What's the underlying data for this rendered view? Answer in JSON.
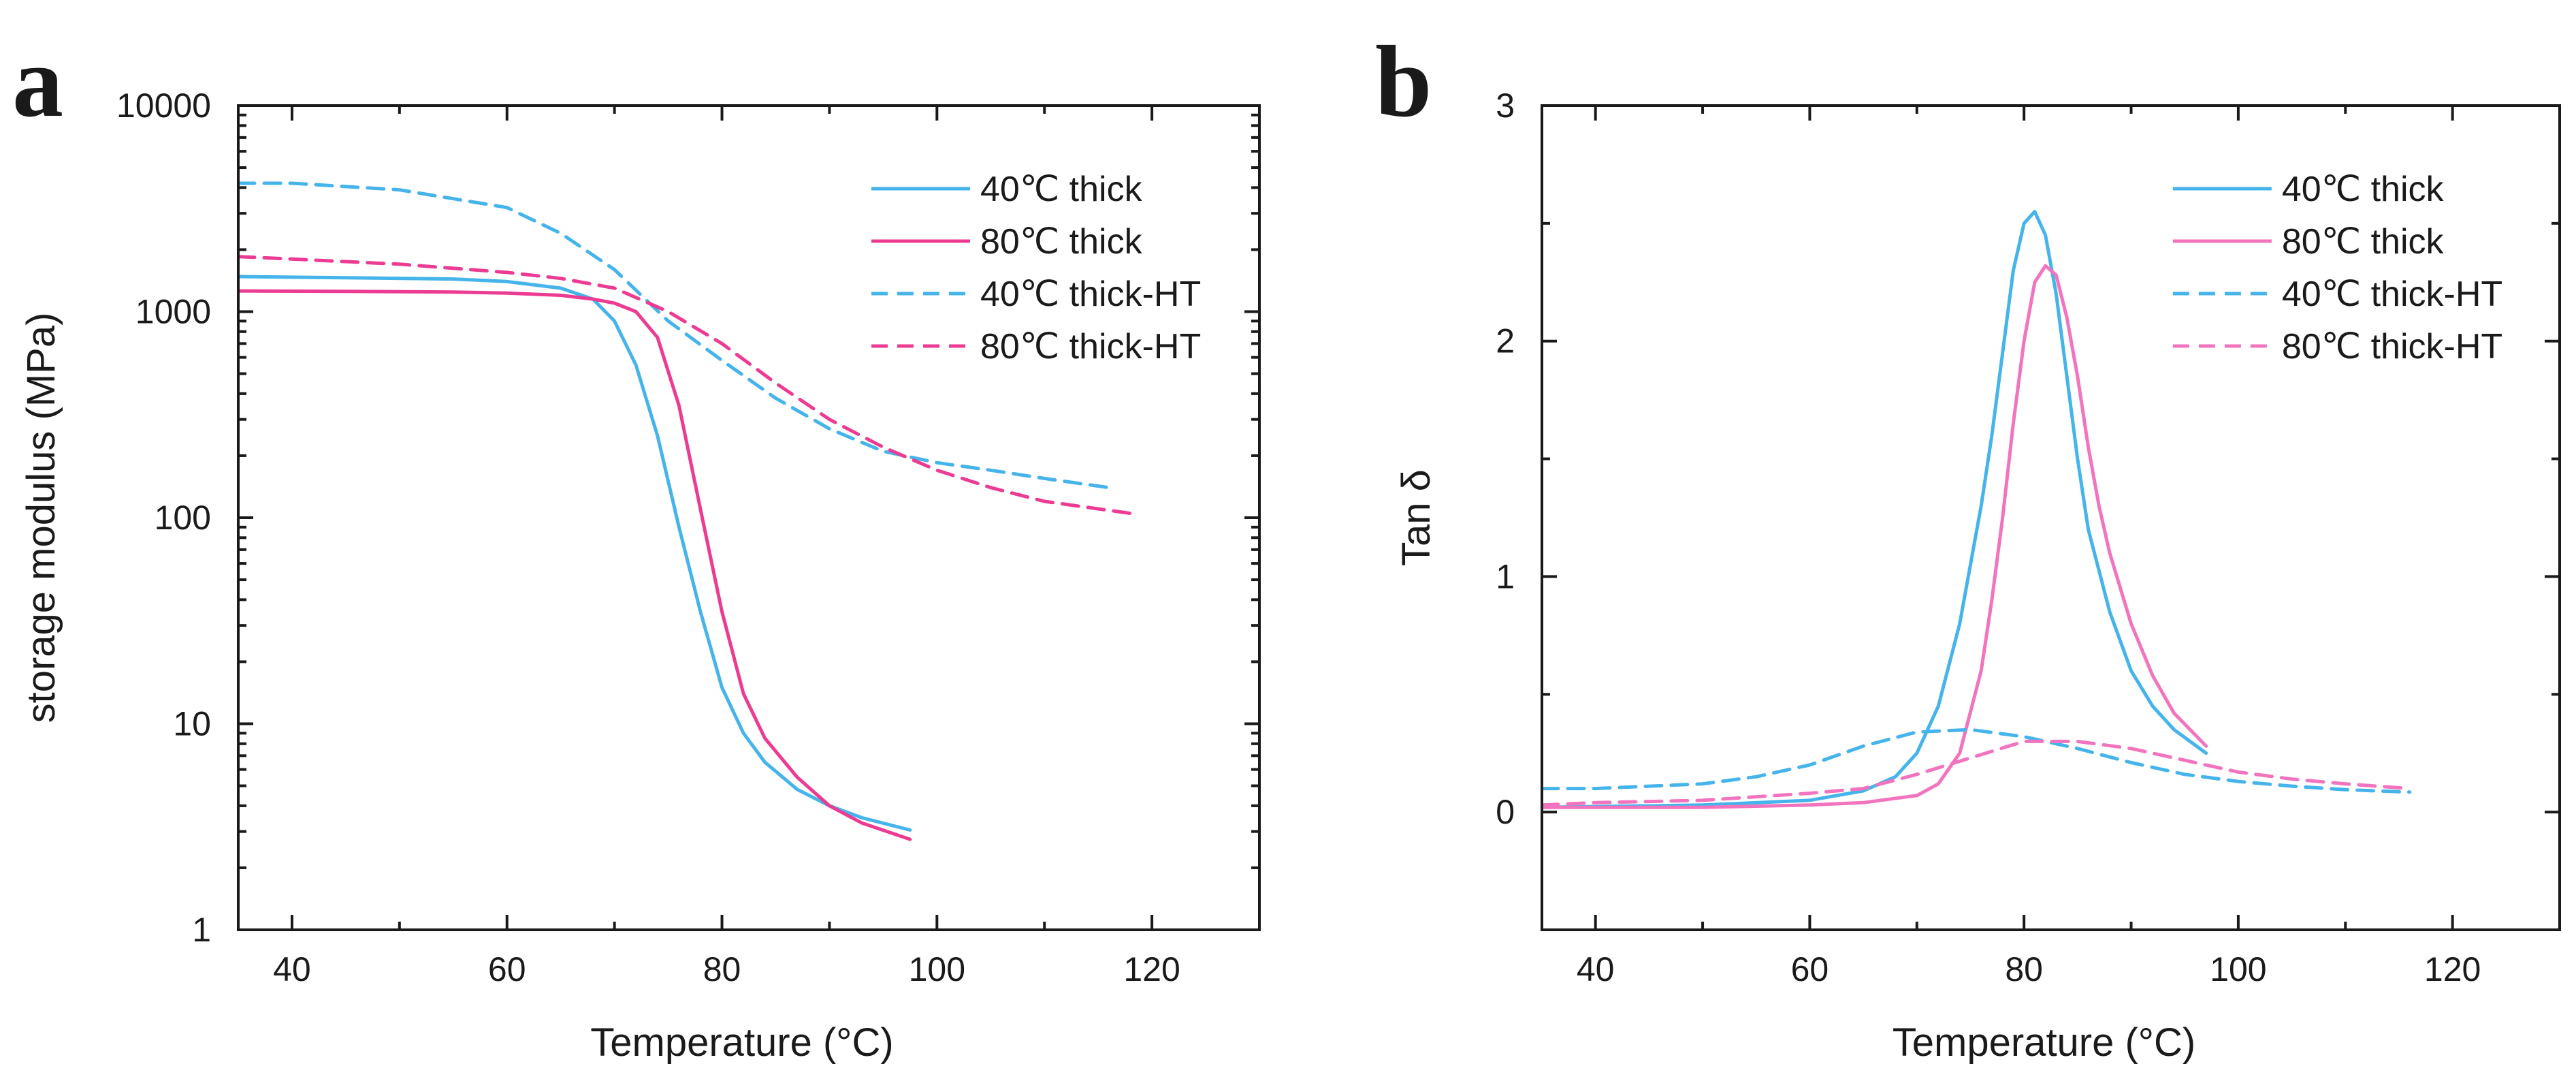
{
  "colors": {
    "cyan": "#45b4ea",
    "magenta": "#ec3b92",
    "pink": "#f274be",
    "axis": "#1a1a1a"
  },
  "chart_data": [
    {
      "panel_label": "a",
      "type": "line",
      "xlabel": "Temperature (°C)",
      "ylabel": "storage modulus (MPa)",
      "xlim": [
        35,
        130
      ],
      "ylim": [
        1,
        10000
      ],
      "yscale": "log",
      "x_ticks": [
        "40",
        "60",
        "80",
        "100",
        "120"
      ],
      "y_ticks": [
        "1",
        "10",
        "100",
        "1000",
        "10000"
      ],
      "legend_position": "top-right",
      "series": [
        {
          "name": "40℃ thick",
          "color": "#45b4ea",
          "dash": false,
          "x": [
            35,
            45,
            55,
            60,
            65,
            68,
            70,
            72,
            74,
            76,
            78,
            80,
            82,
            84,
            87,
            90,
            93,
            97.5
          ],
          "y": [
            1480,
            1460,
            1440,
            1400,
            1300,
            1150,
            900,
            550,
            250,
            90,
            35,
            15,
            9,
            6.5,
            4.8,
            4,
            3.5,
            3.05
          ]
        },
        {
          "name": "80℃ thick",
          "color": "#ec3b92",
          "dash": false,
          "x": [
            35,
            45,
            55,
            60,
            65,
            68,
            70,
            72,
            74,
            76,
            78,
            80,
            82,
            84,
            87,
            90,
            93,
            97.5
          ],
          "y": [
            1260,
            1255,
            1245,
            1230,
            1200,
            1150,
            1100,
            1000,
            750,
            350,
            110,
            35,
            14,
            8.5,
            5.5,
            4,
            3.3,
            2.75
          ]
        },
        {
          "name": "40℃ thick-HT",
          "color": "#45b4ea",
          "dash": true,
          "x": [
            35,
            40,
            50,
            60,
            65,
            70,
            75,
            80,
            85,
            90,
            95,
            100,
            105,
            110,
            116
          ],
          "y": [
            4200,
            4200,
            3900,
            3200,
            2400,
            1600,
            900,
            580,
            380,
            270,
            210,
            185,
            170,
            155,
            140
          ]
        },
        {
          "name": "80℃ thick-HT",
          "color": "#ec3b92",
          "dash": true,
          "x": [
            35,
            40,
            50,
            60,
            65,
            70,
            75,
            80,
            85,
            90,
            95,
            100,
            105,
            110,
            118
          ],
          "y": [
            1850,
            1800,
            1700,
            1550,
            1450,
            1300,
            1000,
            700,
            450,
            300,
            220,
            170,
            140,
            120,
            105
          ]
        }
      ]
    },
    {
      "panel_label": "b",
      "type": "line",
      "xlabel": "Temperature (°C)",
      "ylabel": "Tan δ",
      "xlim": [
        35,
        130
      ],
      "ylim": [
        -0.5,
        3
      ],
      "yscale": "linear",
      "x_ticks": [
        "40",
        "60",
        "80",
        "100",
        "120"
      ],
      "y_ticks": [
        "0",
        "1",
        "2",
        "3"
      ],
      "legend_position": "top-right",
      "series": [
        {
          "name": "40℃ thick",
          "color": "#45b4ea",
          "dash": false,
          "x": [
            35,
            50,
            60,
            65,
            68,
            70,
            72,
            74,
            76,
            77,
            78,
            79,
            80,
            81,
            82,
            83,
            84,
            85,
            86,
            88,
            90,
            92,
            94,
            97
          ],
          "y": [
            0.02,
            0.03,
            0.05,
            0.09,
            0.15,
            0.25,
            0.45,
            0.8,
            1.3,
            1.6,
            1.95,
            2.3,
            2.5,
            2.55,
            2.45,
            2.2,
            1.85,
            1.5,
            1.2,
            0.85,
            0.6,
            0.45,
            0.35,
            0.25
          ]
        },
        {
          "name": "80℃ thick",
          "color": "#f274be",
          "dash": false,
          "x": [
            35,
            50,
            60,
            65,
            70,
            72,
            74,
            76,
            77,
            78,
            79,
            80,
            81,
            82,
            83,
            84,
            85,
            86,
            87,
            88,
            90,
            92,
            94,
            97
          ],
          "y": [
            0.02,
            0.02,
            0.03,
            0.04,
            0.07,
            0.12,
            0.25,
            0.6,
            0.9,
            1.25,
            1.65,
            2.0,
            2.25,
            2.32,
            2.28,
            2.1,
            1.85,
            1.55,
            1.3,
            1.1,
            0.8,
            0.58,
            0.42,
            0.28
          ]
        },
        {
          "name": "40℃ thick-HT",
          "color": "#45b4ea",
          "dash": true,
          "x": [
            35,
            40,
            50,
            55,
            60,
            65,
            70,
            75,
            80,
            85,
            90,
            95,
            100,
            105,
            110,
            116
          ],
          "y": [
            0.1,
            0.1,
            0.12,
            0.15,
            0.2,
            0.28,
            0.34,
            0.35,
            0.32,
            0.27,
            0.21,
            0.16,
            0.13,
            0.11,
            0.095,
            0.085
          ]
        },
        {
          "name": "80℃ thick-HT",
          "color": "#f274be",
          "dash": true,
          "x": [
            35,
            40,
            50,
            60,
            65,
            70,
            75,
            80,
            85,
            90,
            95,
            100,
            105,
            110,
            116
          ],
          "y": [
            0.03,
            0.04,
            0.05,
            0.08,
            0.1,
            0.16,
            0.23,
            0.3,
            0.3,
            0.27,
            0.22,
            0.17,
            0.14,
            0.12,
            0.1
          ]
        }
      ]
    }
  ]
}
